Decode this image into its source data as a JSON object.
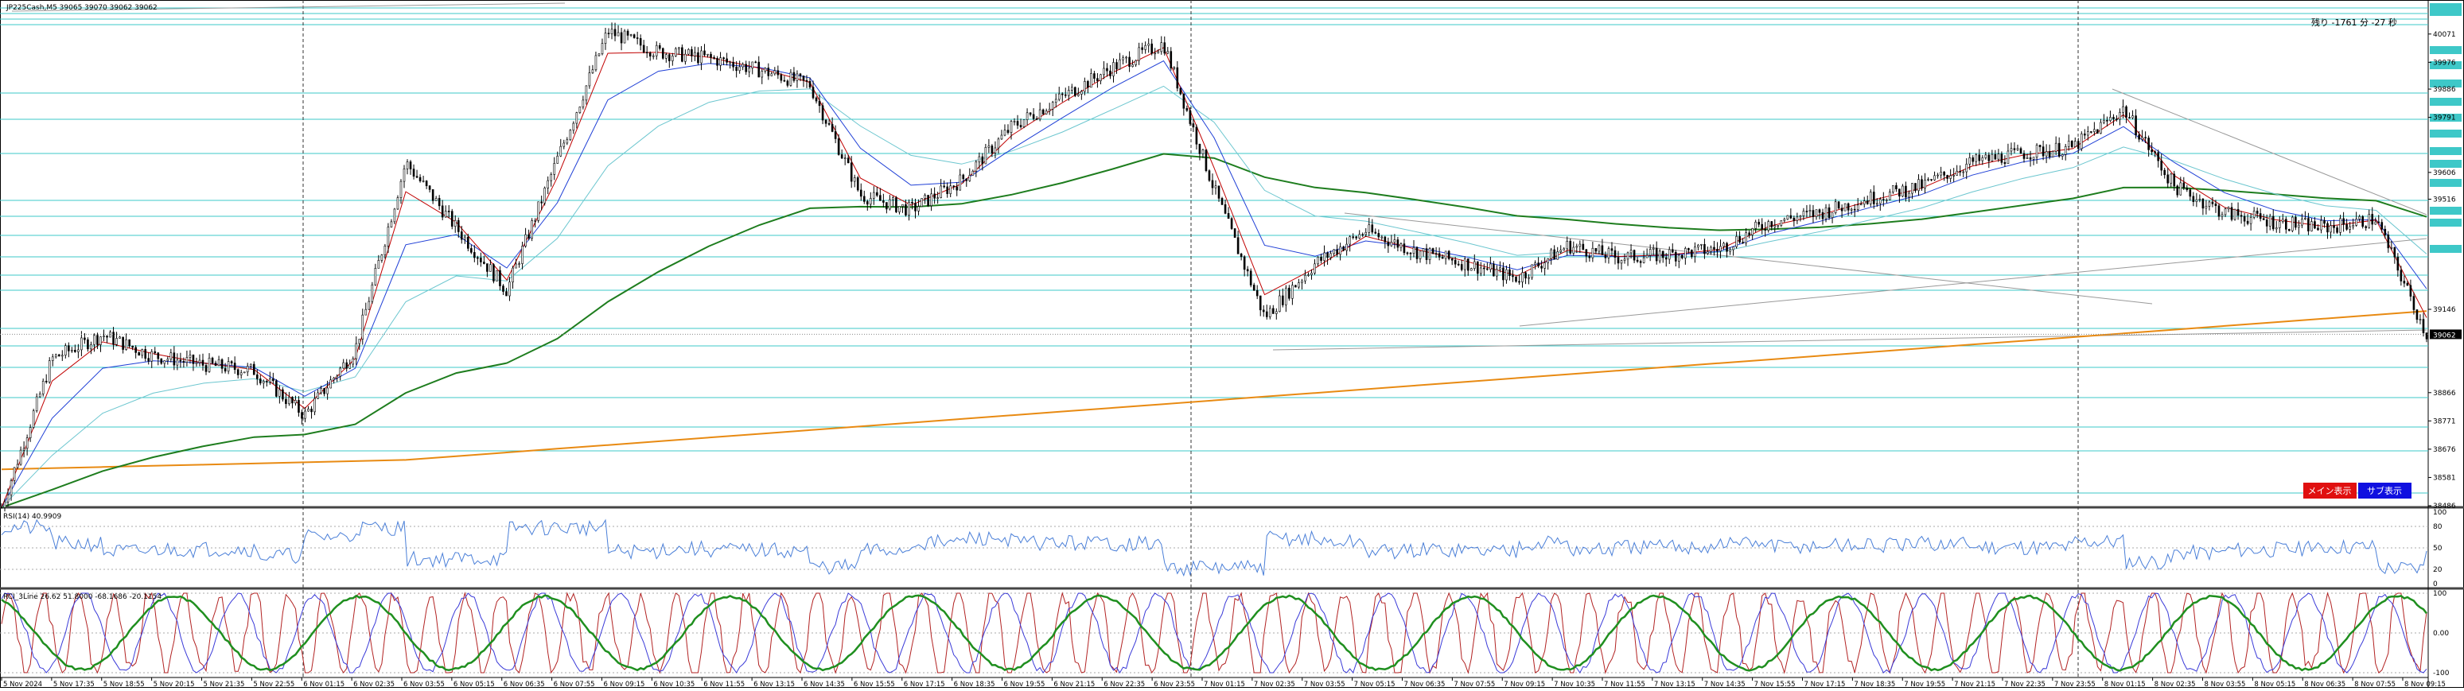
{
  "main_pane": {
    "symbol_label": "JP225Cash,M5  39065 39070 39062 39062",
    "countdown": "残り -1761 分 -27 秒",
    "price_ticks": [
      "40071",
      "39976",
      "39886",
      "39791",
      "39606",
      "39516",
      "39146",
      "38866",
      "38771",
      "38676",
      "38581",
      "38486"
    ],
    "current_price": "39062",
    "buttons": {
      "main": "メイン表示",
      "sub": "サブ表示"
    }
  },
  "rsi_pane": {
    "label": "RSI(14) 40.9909",
    "ticks": [
      "100",
      "80",
      "50",
      "20",
      "0"
    ]
  },
  "rci_pane": {
    "label": "RCI_3Line 26.62 51.8000 -68.1686 -20.1154",
    "ticks": [
      "100",
      "0.00",
      "-100"
    ]
  },
  "time_axis": [
    "5 Nov 2024",
    "5 Nov 17:35",
    "5 Nov 18:55",
    "5 Nov 20:15",
    "5 Nov 21:35",
    "5 Nov 22:55",
    "6 Nov 01:15",
    "6 Nov 02:35",
    "6 Nov 03:55",
    "6 Nov 05:15",
    "6 Nov 06:35",
    "6 Nov 07:55",
    "6 Nov 09:15",
    "6 Nov 10:35",
    "6 Nov 11:55",
    "6 Nov 13:15",
    "6 Nov 14:35",
    "6 Nov 15:55",
    "6 Nov 17:15",
    "6 Nov 18:35",
    "6 Nov 19:55",
    "6 Nov 21:15",
    "6 Nov 22:35",
    "6 Nov 23:55",
    "7 Nov 01:15",
    "7 Nov 02:35",
    "7 Nov 03:55",
    "7 Nov 05:15",
    "7 Nov 06:35",
    "7 Nov 07:55",
    "7 Nov 09:15",
    "7 Nov 10:35",
    "7 Nov 11:55",
    "7 Nov 13:15",
    "7 Nov 14:35",
    "7 Nov 15:55",
    "7 Nov 17:15",
    "7 Nov 18:35",
    "7 Nov 19:55",
    "7 Nov 21:15",
    "7 Nov 22:35",
    "7 Nov 23:55",
    "8 Nov 01:15",
    "8 Nov 02:35",
    "8 Nov 03:55",
    "8 Nov 05:15",
    "8 Nov 06:35",
    "8 Nov 07:55",
    "8 Nov 09:15"
  ],
  "colors": {
    "candle": "#000000",
    "ma_short": "#c00000",
    "ma_mid": "#1f3fd6",
    "ma_long_light": "#6cc6cf",
    "ma_200": "#1e7d1e",
    "ma_orange": "#e88a12",
    "hline": "#3ec8c8",
    "rsi": "#4a7fd8",
    "rci_short": "#b22222",
    "rci_mid": "#3a3ad8",
    "rci_long": "#1f8f1f",
    "btn_main": "#e01010",
    "btn_sub": "#1010e0"
  },
  "chart_data": {
    "type": "line",
    "series": [
      {
        "x": [
          "5 Nov 2024",
          "5 Nov 17:35",
          "5 Nov 18:55",
          "5 Nov 20:15",
          "5 Nov 21:35",
          "5 Nov 22:55",
          "6 Nov 01:15",
          "6 Nov 02:35",
          "6 Nov 03:55",
          "6 Nov 05:15",
          "6 Nov 06:35",
          "6 Nov 07:55",
          "6 Nov 09:15",
          "6 Nov 10:35",
          "6 Nov 11:55",
          "6 Nov 13:15",
          "6 Nov 14:35",
          "6 Nov 15:55",
          "6 Nov 17:15",
          "6 Nov 18:35",
          "6 Nov 19:55",
          "6 Nov 21:15",
          "6 Nov 22:35",
          "6 Nov 23:55",
          "7 Nov 01:15",
          "7 Nov 02:35",
          "7 Nov 03:55",
          "7 Nov 05:15",
          "7 Nov 06:35",
          "7 Nov 07:55",
          "7 Nov 09:15",
          "7 Nov 10:35",
          "7 Nov 11:55",
          "7 Nov 13:15",
          "7 Nov 14:35",
          "7 Nov 15:55",
          "7 Nov 17:15",
          "7 Nov 18:35",
          "7 Nov 19:55",
          "7 Nov 21:15",
          "7 Nov 22:35",
          "7 Nov 23:55",
          "8 Nov 01:15",
          "8 Nov 02:35",
          "8 Nov 03:55",
          "8 Nov 05:15",
          "8 Nov 06:35",
          "8 Nov 07:55",
          "8 Nov 09:15"
        ],
        "values": [
          38480,
          38980,
          39060,
          38990,
          38960,
          38940,
          38790,
          39010,
          39640,
          39420,
          39210,
          39650,
          40080,
          40010,
          39990,
          39950,
          39900,
          39530,
          39480,
          39580,
          39760,
          39860,
          39960,
          40040,
          39550,
          39120,
          39300,
          39410,
          39340,
          39300,
          39250,
          39360,
          39320,
          39330,
          39350,
          39440,
          39470,
          39520,
          39560,
          39640,
          39670,
          39690,
          39820,
          39560,
          39470,
          39440,
          39420,
          39450,
          39060
        ]
      }
    ],
    "ylim": [
      38486,
      40180
    ]
  }
}
